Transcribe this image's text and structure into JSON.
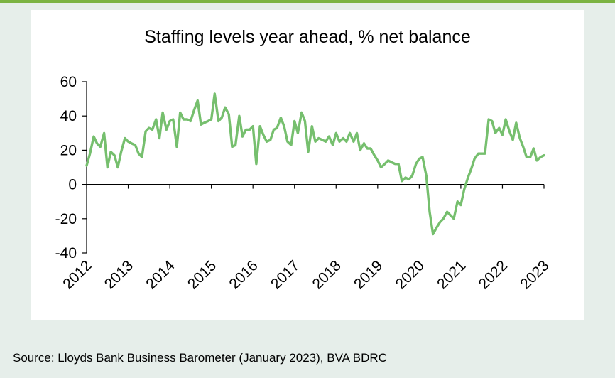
{
  "source_note": "Source: Lloyds Bank Business Barometer (January 2023), BVA BDRC",
  "colors": {
    "line": "#76bf6e",
    "accent_rule": "#7cb342",
    "background": "#e6eeea",
    "panel": "#ffffff"
  },
  "chart_data": {
    "type": "line",
    "title": "Staffing levels year ahead, % net balance",
    "xlabel": "",
    "ylabel": "",
    "ylim": [
      -40,
      60
    ],
    "yticks": [
      60,
      40,
      20,
      0,
      -20,
      -40
    ],
    "xlim": [
      2012,
      2023
    ],
    "xticks": [
      "2012",
      "2013",
      "2014",
      "2015",
      "2016",
      "2017",
      "2018",
      "2019",
      "2020",
      "2021",
      "2022",
      "2023"
    ],
    "grid": false,
    "legend": "none",
    "series": [
      {
        "x": [
          2012.0,
          2012.08,
          2012.17,
          2012.25,
          2012.33,
          2012.42,
          2012.5,
          2012.58,
          2012.67,
          2012.75,
          2012.83,
          2012.92,
          2013.0,
          2013.08,
          2013.17,
          2013.25,
          2013.33,
          2013.42,
          2013.5,
          2013.58,
          2013.67,
          2013.75,
          2013.83,
          2013.92,
          2014.0,
          2014.08,
          2014.17,
          2014.25,
          2014.33,
          2014.42,
          2014.5,
          2014.58,
          2014.67,
          2014.75,
          2014.83,
          2014.92,
          2015.0,
          2015.08,
          2015.17,
          2015.25,
          2015.33,
          2015.42,
          2015.5,
          2015.58,
          2015.67,
          2015.75,
          2015.83,
          2015.92,
          2016.0,
          2016.08,
          2016.17,
          2016.25,
          2016.33,
          2016.42,
          2016.5,
          2016.58,
          2016.67,
          2016.75,
          2016.83,
          2016.92,
          2017.0,
          2017.08,
          2017.17,
          2017.25,
          2017.33,
          2017.42,
          2017.5,
          2017.58,
          2017.67,
          2017.75,
          2017.83,
          2017.92,
          2018.0,
          2018.08,
          2018.17,
          2018.25,
          2018.33,
          2018.42,
          2018.5,
          2018.58,
          2018.67,
          2018.75,
          2018.83,
          2018.92,
          2019.0,
          2019.08,
          2019.17,
          2019.25,
          2019.33,
          2019.42,
          2019.5,
          2019.58,
          2019.67,
          2019.75,
          2019.83,
          2019.92,
          2020.0,
          2020.08,
          2020.17,
          2020.25,
          2020.33,
          2020.42,
          2020.5,
          2020.58,
          2020.67,
          2020.75,
          2020.83,
          2020.92,
          2021.0,
          2021.08,
          2021.17,
          2021.25,
          2021.33,
          2021.42,
          2021.5,
          2021.58,
          2021.67,
          2021.75,
          2021.83,
          2021.92,
          2022.0,
          2022.08,
          2022.17,
          2022.25,
          2022.33,
          2022.42,
          2022.5,
          2022.58,
          2022.67,
          2022.75,
          2022.83,
          2022.92,
          2023.0
        ],
        "y": [
          11,
          18,
          28,
          24,
          22,
          30,
          10,
          19,
          17,
          10,
          19,
          27,
          25,
          24,
          23,
          18,
          16,
          31,
          33,
          32,
          38,
          27,
          42,
          32,
          37,
          38,
          22,
          42,
          38,
          38,
          37,
          43,
          49,
          35,
          36,
          37,
          38,
          53,
          37,
          39,
          45,
          41,
          22,
          23,
          40,
          28,
          32,
          32,
          34,
          12,
          34,
          29,
          25,
          26,
          32,
          33,
          39,
          34,
          25,
          23,
          37,
          30,
          42,
          37,
          19,
          34,
          25,
          27,
          26,
          25,
          28,
          23,
          30,
          25,
          27,
          25,
          30,
          25,
          30,
          20,
          24,
          21,
          21,
          17,
          14,
          10,
          12,
          14,
          13,
          12,
          12,
          2,
          4,
          3,
          5,
          12,
          15,
          16,
          5,
          -16,
          -29,
          -25,
          -22,
          -20,
          -16,
          -18,
          -20,
          -10,
          -12,
          -3,
          4,
          9,
          15,
          18,
          18,
          18,
          38,
          37,
          30,
          33,
          29,
          38,
          31,
          26,
          36,
          27,
          22,
          16,
          16,
          21,
          14,
          16,
          17
        ]
      }
    ]
  }
}
